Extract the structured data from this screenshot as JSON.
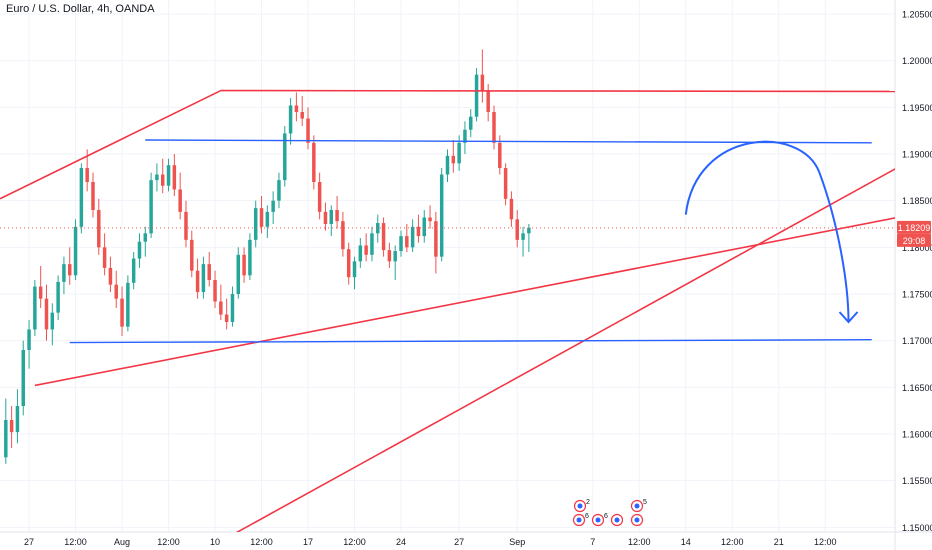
{
  "chart_data": {
    "type": "candlestick",
    "title": "Euro / U.S. Dollar, 4h, OANDA",
    "symbol": "EURUSD",
    "interval": "4h",
    "source": "OANDA",
    "colors": {
      "up": "#26a69a",
      "down": "#ef5350",
      "trendline": "#f23645",
      "hline": "#2962ff",
      "path": "#2962ff",
      "grid": "#f0f3fa",
      "axis_text": "#131722",
      "price_tag": "#ef5350"
    },
    "ylim": [
      1.1495,
      1.2065
    ],
    "y_ticks": [
      "1.15000",
      "1.15500",
      "1.16000",
      "1.16500",
      "1.17000",
      "1.17500",
      "1.18000",
      "1.18500",
      "1.19000",
      "1.19500",
      "1.20000",
      "1.20500"
    ],
    "x_ticks": [
      {
        "label": "27",
        "index": 4
      },
      {
        "label": "12:00",
        "index": 12
      },
      {
        "label": "Aug",
        "index": 20
      },
      {
        "label": "12:00",
        "index": 28
      },
      {
        "label": "10",
        "index": 36
      },
      {
        "label": "12:00",
        "index": 44
      },
      {
        "label": "17",
        "index": 52
      },
      {
        "label": "12:00",
        "index": 60
      },
      {
        "label": "24",
        "index": 68
      },
      {
        "label": "27",
        "index": 78
      },
      {
        "label": "Sep",
        "index": 88
      },
      {
        "label": "7",
        "index": 101
      },
      {
        "label": "12:00",
        "index": 109
      },
      {
        "label": "14",
        "index": 117
      },
      {
        "label": "12:00",
        "index": 125
      },
      {
        "label": "21",
        "index": 133
      },
      {
        "label": "12:00",
        "index": 141
      }
    ],
    "x_range": [
      -1,
      153
    ],
    "candles": [
      [
        1.1575,
        1.1638,
        1.1568,
        1.1615
      ],
      [
        1.1615,
        1.163,
        1.1585,
        1.1602
      ],
      [
        1.1602,
        1.1648,
        1.159,
        1.163
      ],
      [
        1.163,
        1.17,
        1.162,
        1.169
      ],
      [
        1.169,
        1.1722,
        1.167,
        1.1712
      ],
      [
        1.1712,
        1.1765,
        1.1705,
        1.1758
      ],
      [
        1.1758,
        1.178,
        1.1735,
        1.1745
      ],
      [
        1.1745,
        1.176,
        1.17,
        1.1712
      ],
      [
        1.1712,
        1.174,
        1.1695,
        1.173
      ],
      [
        1.173,
        1.177,
        1.1722,
        1.1763
      ],
      [
        1.1763,
        1.179,
        1.175,
        1.1782
      ],
      [
        1.1782,
        1.18,
        1.176,
        1.177
      ],
      [
        1.177,
        1.183,
        1.1765,
        1.1822
      ],
      [
        1.1822,
        1.189,
        1.1815,
        1.1885
      ],
      [
        1.1885,
        1.1905,
        1.186,
        1.187
      ],
      [
        1.187,
        1.188,
        1.1832,
        1.184
      ],
      [
        1.184,
        1.1852,
        1.1792,
        1.18
      ],
      [
        1.18,
        1.1815,
        1.177,
        1.1778
      ],
      [
        1.1778,
        1.179,
        1.1752,
        1.176
      ],
      [
        1.176,
        1.1775,
        1.1735,
        1.1745
      ],
      [
        1.1745,
        1.1758,
        1.1705,
        1.1715
      ],
      [
        1.1715,
        1.177,
        1.171,
        1.1762
      ],
      [
        1.1762,
        1.1795,
        1.1755,
        1.1788
      ],
      [
        1.1788,
        1.1815,
        1.1778,
        1.1806
      ],
      [
        1.1806,
        1.1822,
        1.179,
        1.1815
      ],
      [
        1.1815,
        1.188,
        1.181,
        1.1872
      ],
      [
        1.1872,
        1.189,
        1.186,
        1.1878
      ],
      [
        1.1878,
        1.1895,
        1.1858,
        1.1866
      ],
      [
        1.1866,
        1.1895,
        1.186,
        1.1888
      ],
      [
        1.1888,
        1.19,
        1.1855,
        1.1862
      ],
      [
        1.1862,
        1.188,
        1.183,
        1.1838
      ],
      [
        1.1838,
        1.185,
        1.18,
        1.1808
      ],
      [
        1.1808,
        1.1818,
        1.1768,
        1.1775
      ],
      [
        1.1775,
        1.1788,
        1.1745,
        1.1752
      ],
      [
        1.1752,
        1.179,
        1.1745,
        1.1782
      ],
      [
        1.1782,
        1.1795,
        1.1758,
        1.1765
      ],
      [
        1.1765,
        1.1775,
        1.1735,
        1.1742
      ],
      [
        1.1742,
        1.176,
        1.1722,
        1.1728
      ],
      [
        1.1728,
        1.1745,
        1.1712,
        1.172
      ],
      [
        1.172,
        1.1758,
        1.1715,
        1.175
      ],
      [
        1.175,
        1.18,
        1.1745,
        1.1792
      ],
      [
        1.1792,
        1.18,
        1.1762,
        1.177
      ],
      [
        1.177,
        1.1815,
        1.1765,
        1.1808
      ],
      [
        1.1808,
        1.185,
        1.18,
        1.1842
      ],
      [
        1.1842,
        1.1855,
        1.1815,
        1.1822
      ],
      [
        1.1822,
        1.1845,
        1.181,
        1.1838
      ],
      [
        1.1838,
        1.186,
        1.1825,
        1.185
      ],
      [
        1.185,
        1.188,
        1.1842,
        1.1872
      ],
      [
        1.1872,
        1.193,
        1.1865,
        1.1922
      ],
      [
        1.1922,
        1.196,
        1.191,
        1.1952
      ],
      [
        1.1952,
        1.1966,
        1.1935,
        1.1945
      ],
      [
        1.1945,
        1.1962,
        1.193,
        1.1938
      ],
      [
        1.1938,
        1.195,
        1.1905,
        1.1912
      ],
      [
        1.1912,
        1.192,
        1.1862,
        1.187
      ],
      [
        1.187,
        1.188,
        1.183,
        1.1838
      ],
      [
        1.1838,
        1.1848,
        1.1818,
        1.1825
      ],
      [
        1.1825,
        1.1845,
        1.1812,
        1.184
      ],
      [
        1.184,
        1.1855,
        1.182,
        1.1828
      ],
      [
        1.1828,
        1.1838,
        1.179,
        1.1798
      ],
      [
        1.1798,
        1.1805,
        1.176,
        1.1768
      ],
      [
        1.1768,
        1.179,
        1.1755,
        1.1785
      ],
      [
        1.1785,
        1.181,
        1.1778,
        1.1802
      ],
      [
        1.1802,
        1.1815,
        1.1785,
        1.1792
      ],
      [
        1.1792,
        1.1822,
        1.1785,
        1.1815
      ],
      [
        1.1815,
        1.1835,
        1.1805,
        1.1826
      ],
      [
        1.1826,
        1.1832,
        1.179,
        1.1797
      ],
      [
        1.1797,
        1.1805,
        1.1778,
        1.1785
      ],
      [
        1.1785,
        1.1802,
        1.1765,
        1.1796
      ],
      [
        1.1796,
        1.1818,
        1.179,
        1.1812
      ],
      [
        1.1812,
        1.1825,
        1.1795,
        1.18
      ],
      [
        1.18,
        1.183,
        1.1795,
        1.1822
      ],
      [
        1.1822,
        1.1835,
        1.1805,
        1.1812
      ],
      [
        1.1812,
        1.184,
        1.1805,
        1.1832
      ],
      [
        1.1832,
        1.1845,
        1.182,
        1.1828
      ],
      [
        1.1828,
        1.1838,
        1.1772,
        1.179
      ],
      [
        1.179,
        1.1885,
        1.1785,
        1.1878
      ],
      [
        1.1878,
        1.1905,
        1.187,
        1.1898
      ],
      [
        1.1898,
        1.1915,
        1.188,
        1.189
      ],
      [
        1.189,
        1.192,
        1.1882,
        1.1912
      ],
      [
        1.1912,
        1.1935,
        1.19,
        1.1926
      ],
      [
        1.1926,
        1.1948,
        1.1918,
        1.194
      ],
      [
        1.194,
        1.1992,
        1.1935,
        1.1985
      ],
      [
        1.1985,
        1.2012,
        1.1955,
        1.1968
      ],
      [
        1.1968,
        1.1975,
        1.1935,
        1.1945
      ],
      [
        1.1945,
        1.1952,
        1.1905,
        1.1912
      ],
      [
        1.1912,
        1.192,
        1.1878,
        1.1885
      ],
      [
        1.1885,
        1.189,
        1.1845,
        1.1852
      ],
      [
        1.1852,
        1.186,
        1.1822,
        1.183
      ],
      [
        1.183,
        1.184,
        1.18,
        1.1808
      ],
      [
        1.1808,
        1.1822,
        1.179,
        1.1815
      ],
      [
        1.1815,
        1.1825,
        1.1795,
        1.1821
      ]
    ],
    "drawings": {
      "red_lines": [
        [
          -1,
          1.1852,
          37,
          1.1968
        ],
        [
          37,
          1.1968,
          153,
          1.1967
        ],
        [
          5,
          1.1652,
          160,
          1.184
        ],
        [
          39,
          1.1492,
          160,
          1.1908
        ]
      ],
      "blue_lines": [
        [
          24,
          1.1915,
          149,
          1.1912
        ],
        [
          11,
          1.1698,
          149,
          1.1701
        ]
      ],
      "blue_arrow_path": [
        [
          117,
          1.1835
        ],
        [
          130,
          1.19
        ],
        [
          140,
          1.188
        ],
        [
          145,
          1.172
        ]
      ]
    },
    "last_price": "1.18209",
    "countdown": "29:08",
    "event_markers": [
      {
        "icon": "flag-icon",
        "label": "2"
      },
      {
        "icon": "flag-icon",
        "label": "6"
      },
      {
        "icon": "flag-icon",
        "label": "6"
      },
      {
        "icon": "flag-icon",
        "label": ""
      },
      {
        "icon": "flag-icon",
        "label": ""
      },
      {
        "icon": "flag-icon",
        "label": "5"
      }
    ]
  }
}
